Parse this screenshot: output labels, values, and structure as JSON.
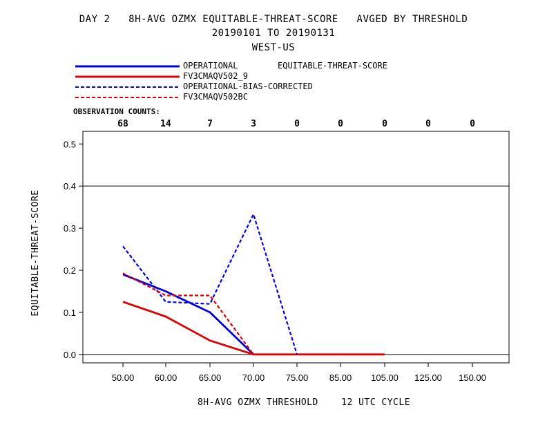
{
  "title": {
    "line1": "DAY 2   8H-AVG OZMX EQUITABLE-THREAT-SCORE   AVGED BY THRESHOLD",
    "line2": "20190101 TO 20190131",
    "line3": "WEST-US"
  },
  "legend": {
    "note": "EQUITABLE-THREAT-SCORE",
    "entries": [
      {
        "label": "OPERATIONAL",
        "color": "#0000dd",
        "dash": "solid"
      },
      {
        "label": "FV3CMAQV502_9",
        "color": "#dd0000",
        "dash": "solid"
      },
      {
        "label": "OPERATIONAL-BIAS-CORRECTED",
        "color": "#0000dd",
        "dash": "dashed"
      },
      {
        "label": "FV3CMAQV502BC",
        "color": "#dd0000",
        "dash": "dashed"
      }
    ]
  },
  "observation": {
    "label": "OBSERVATION COUNTS:",
    "counts": [
      "68",
      "14",
      "7",
      "3",
      "0",
      "0",
      "0",
      "0",
      "0"
    ]
  },
  "chart_data": {
    "type": "line",
    "categories": [
      "50.00",
      "60.00",
      "65.00",
      "70.00",
      "75.00",
      "85.00",
      "105.00",
      "125.00",
      "150.00"
    ],
    "xlabel": "8H-AVG OZMX THRESHOLD    12 UTC CYCLE",
    "ylabel": "EQUITABLE-THREAT-SCORE",
    "yticks": [
      "0.0",
      "0.1",
      "0.2",
      "0.3",
      "0.4",
      "0.5"
    ],
    "ylim": [
      -0.02,
      0.53
    ],
    "reference_lines": [
      0.0,
      0.4
    ],
    "grid": false,
    "legend_position": "top-left",
    "series": [
      {
        "name": "OPERATIONAL",
        "color": "#0000dd",
        "dashed": false,
        "values": [
          0.19,
          0.15,
          0.1,
          0.0,
          null,
          null,
          null,
          null,
          null
        ]
      },
      {
        "name": "FV3CMAQV502_9",
        "color": "#dd0000",
        "dashed": false,
        "values": [
          0.125,
          0.09,
          0.033,
          0.0,
          0.0,
          0.0,
          0.0,
          null,
          null
        ]
      },
      {
        "name": "OPERATIONAL-BIAS-CORRECTED",
        "color": "#0000dd",
        "dashed": true,
        "values": [
          0.257,
          0.125,
          0.12,
          0.333,
          0.0,
          null,
          null,
          null,
          null
        ]
      },
      {
        "name": "FV3CMAQV502BC",
        "color": "#dd0000",
        "dashed": true,
        "values": [
          0.193,
          0.14,
          0.14,
          0.0,
          null,
          null,
          null,
          null,
          null
        ]
      }
    ]
  }
}
